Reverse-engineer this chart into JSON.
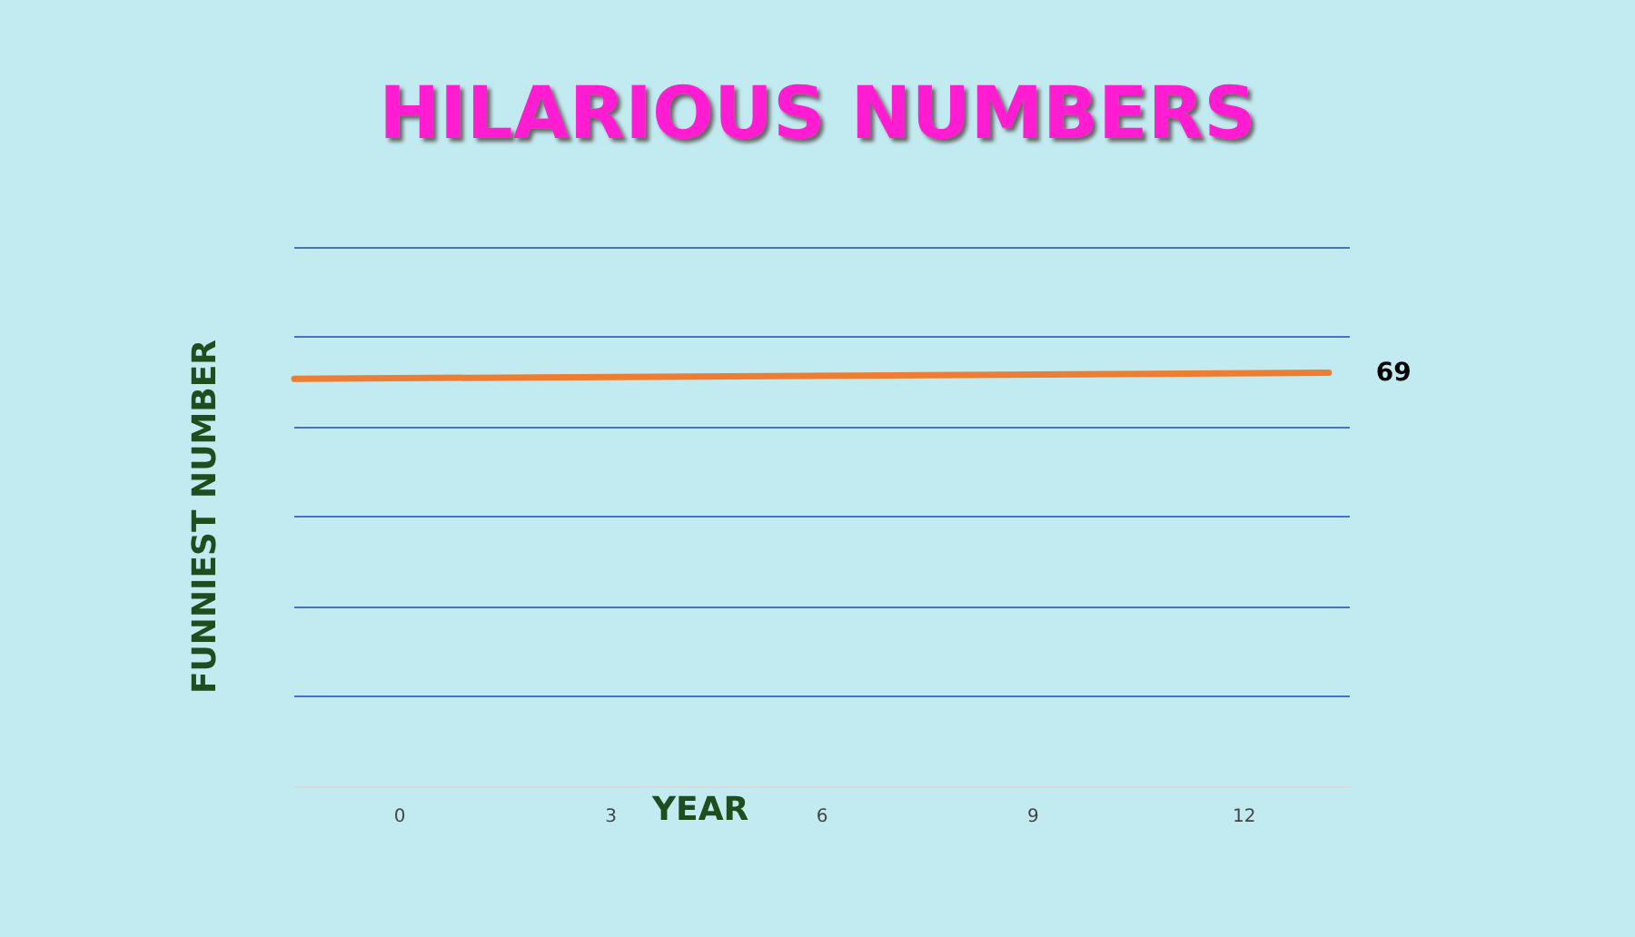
{
  "chart_data": {
    "type": "line",
    "title": "HILARIOUS NUMBERS",
    "xlabel": "YEAR",
    "ylabel": "FUNNIEST NUMBER",
    "xlim": [
      -1.5,
      13.5
    ],
    "xticks": [
      0,
      3,
      6,
      9,
      12
    ],
    "ylim": [
      0,
      90
    ],
    "yticks": [
      {
        "value": 0,
        "label": null
      },
      {
        "value": 15,
        "label": null
      },
      {
        "value": 30,
        "label": null
      },
      {
        "value": 45,
        "label": null
      },
      {
        "value": 60,
        "label": null
      },
      {
        "value": 75,
        "label": null
      },
      {
        "value": 90,
        "label": null
      }
    ],
    "tick_labels": "x",
    "grid": "y",
    "series": [
      {
        "color": "#ed7d31",
        "x": [
          -1.5,
          13.2
        ],
        "values": [
          68,
          69
        ],
        "value_labels": [
          null,
          "69"
        ]
      }
    ]
  }
}
